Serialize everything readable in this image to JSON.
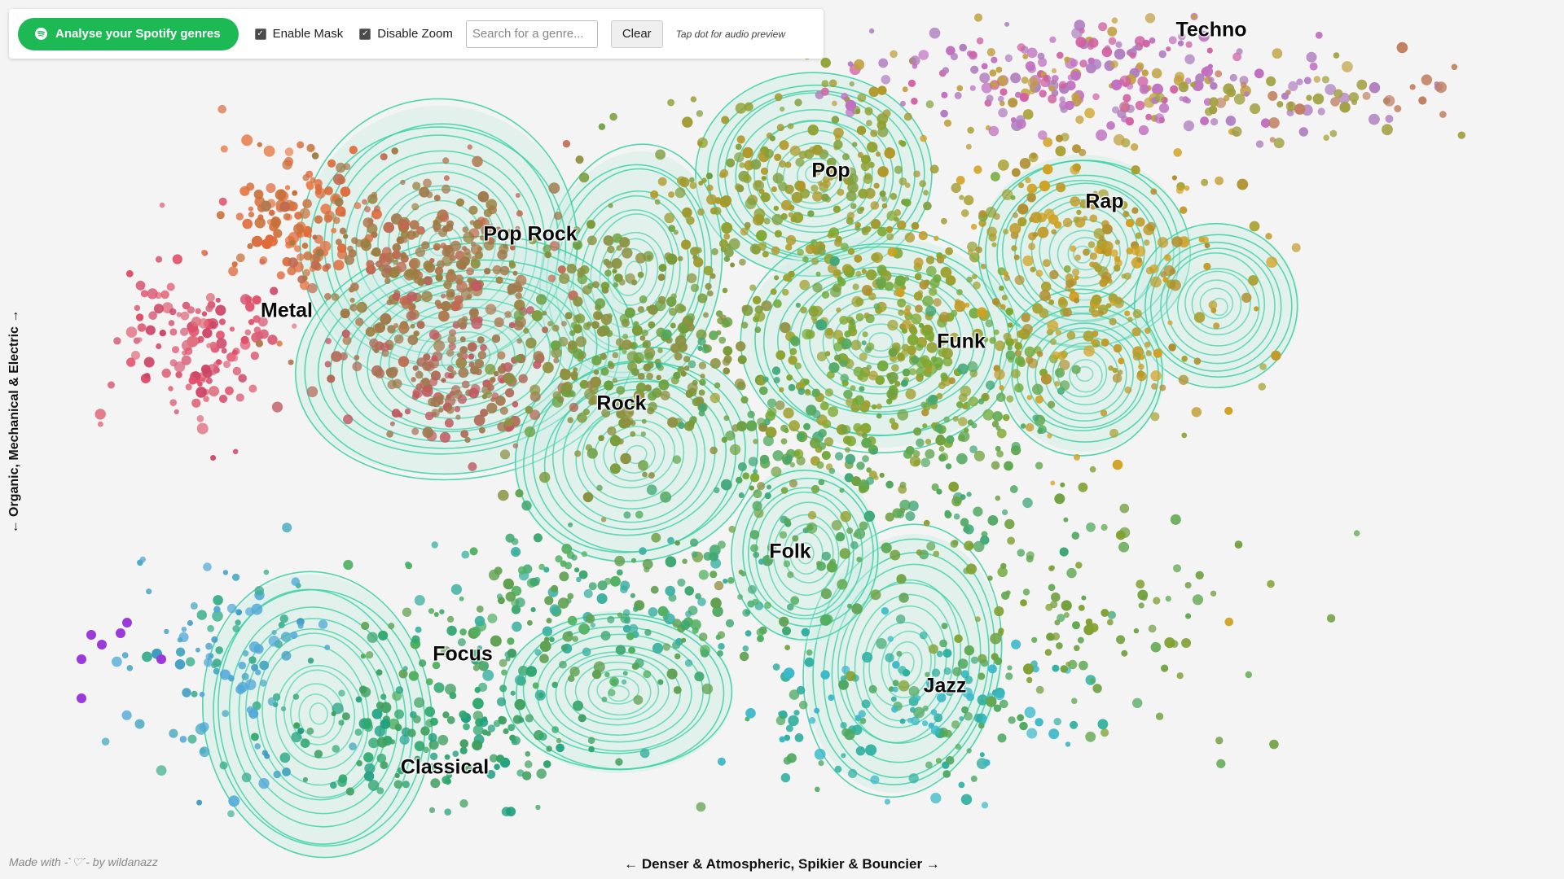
{
  "toolbar": {
    "spotify_button": "Analyse your Spotify genres",
    "enable_mask": {
      "label": "Enable Mask",
      "checked": true
    },
    "disable_zoom": {
      "label": "Disable Zoom",
      "checked": true
    },
    "search_placeholder": "Search for a genre...",
    "search_value": "",
    "clear_label": "Clear",
    "hint": "Tap dot for audio preview"
  },
  "axes": {
    "x_label": "← Denser & Atmospheric, Spikier & Bouncier →",
    "y_label": "← Organic, Mechanical & Electric →"
  },
  "credit": "Made with -`♡´- by wildanazz",
  "genres": [
    "Techno",
    "Pop",
    "Rap",
    "Pop Rock",
    "Metal",
    "Funk",
    "Rock",
    "Folk",
    "Focus",
    "Jazz",
    "Classical"
  ],
  "colors": {
    "contour": "#3fd1a6",
    "contour_fill": "#cfeee4",
    "spotify_green": "#1db954",
    "background": "#f4f4f4"
  },
  "icons": {
    "spotify": "spotify-icon",
    "check": "check-icon"
  }
}
